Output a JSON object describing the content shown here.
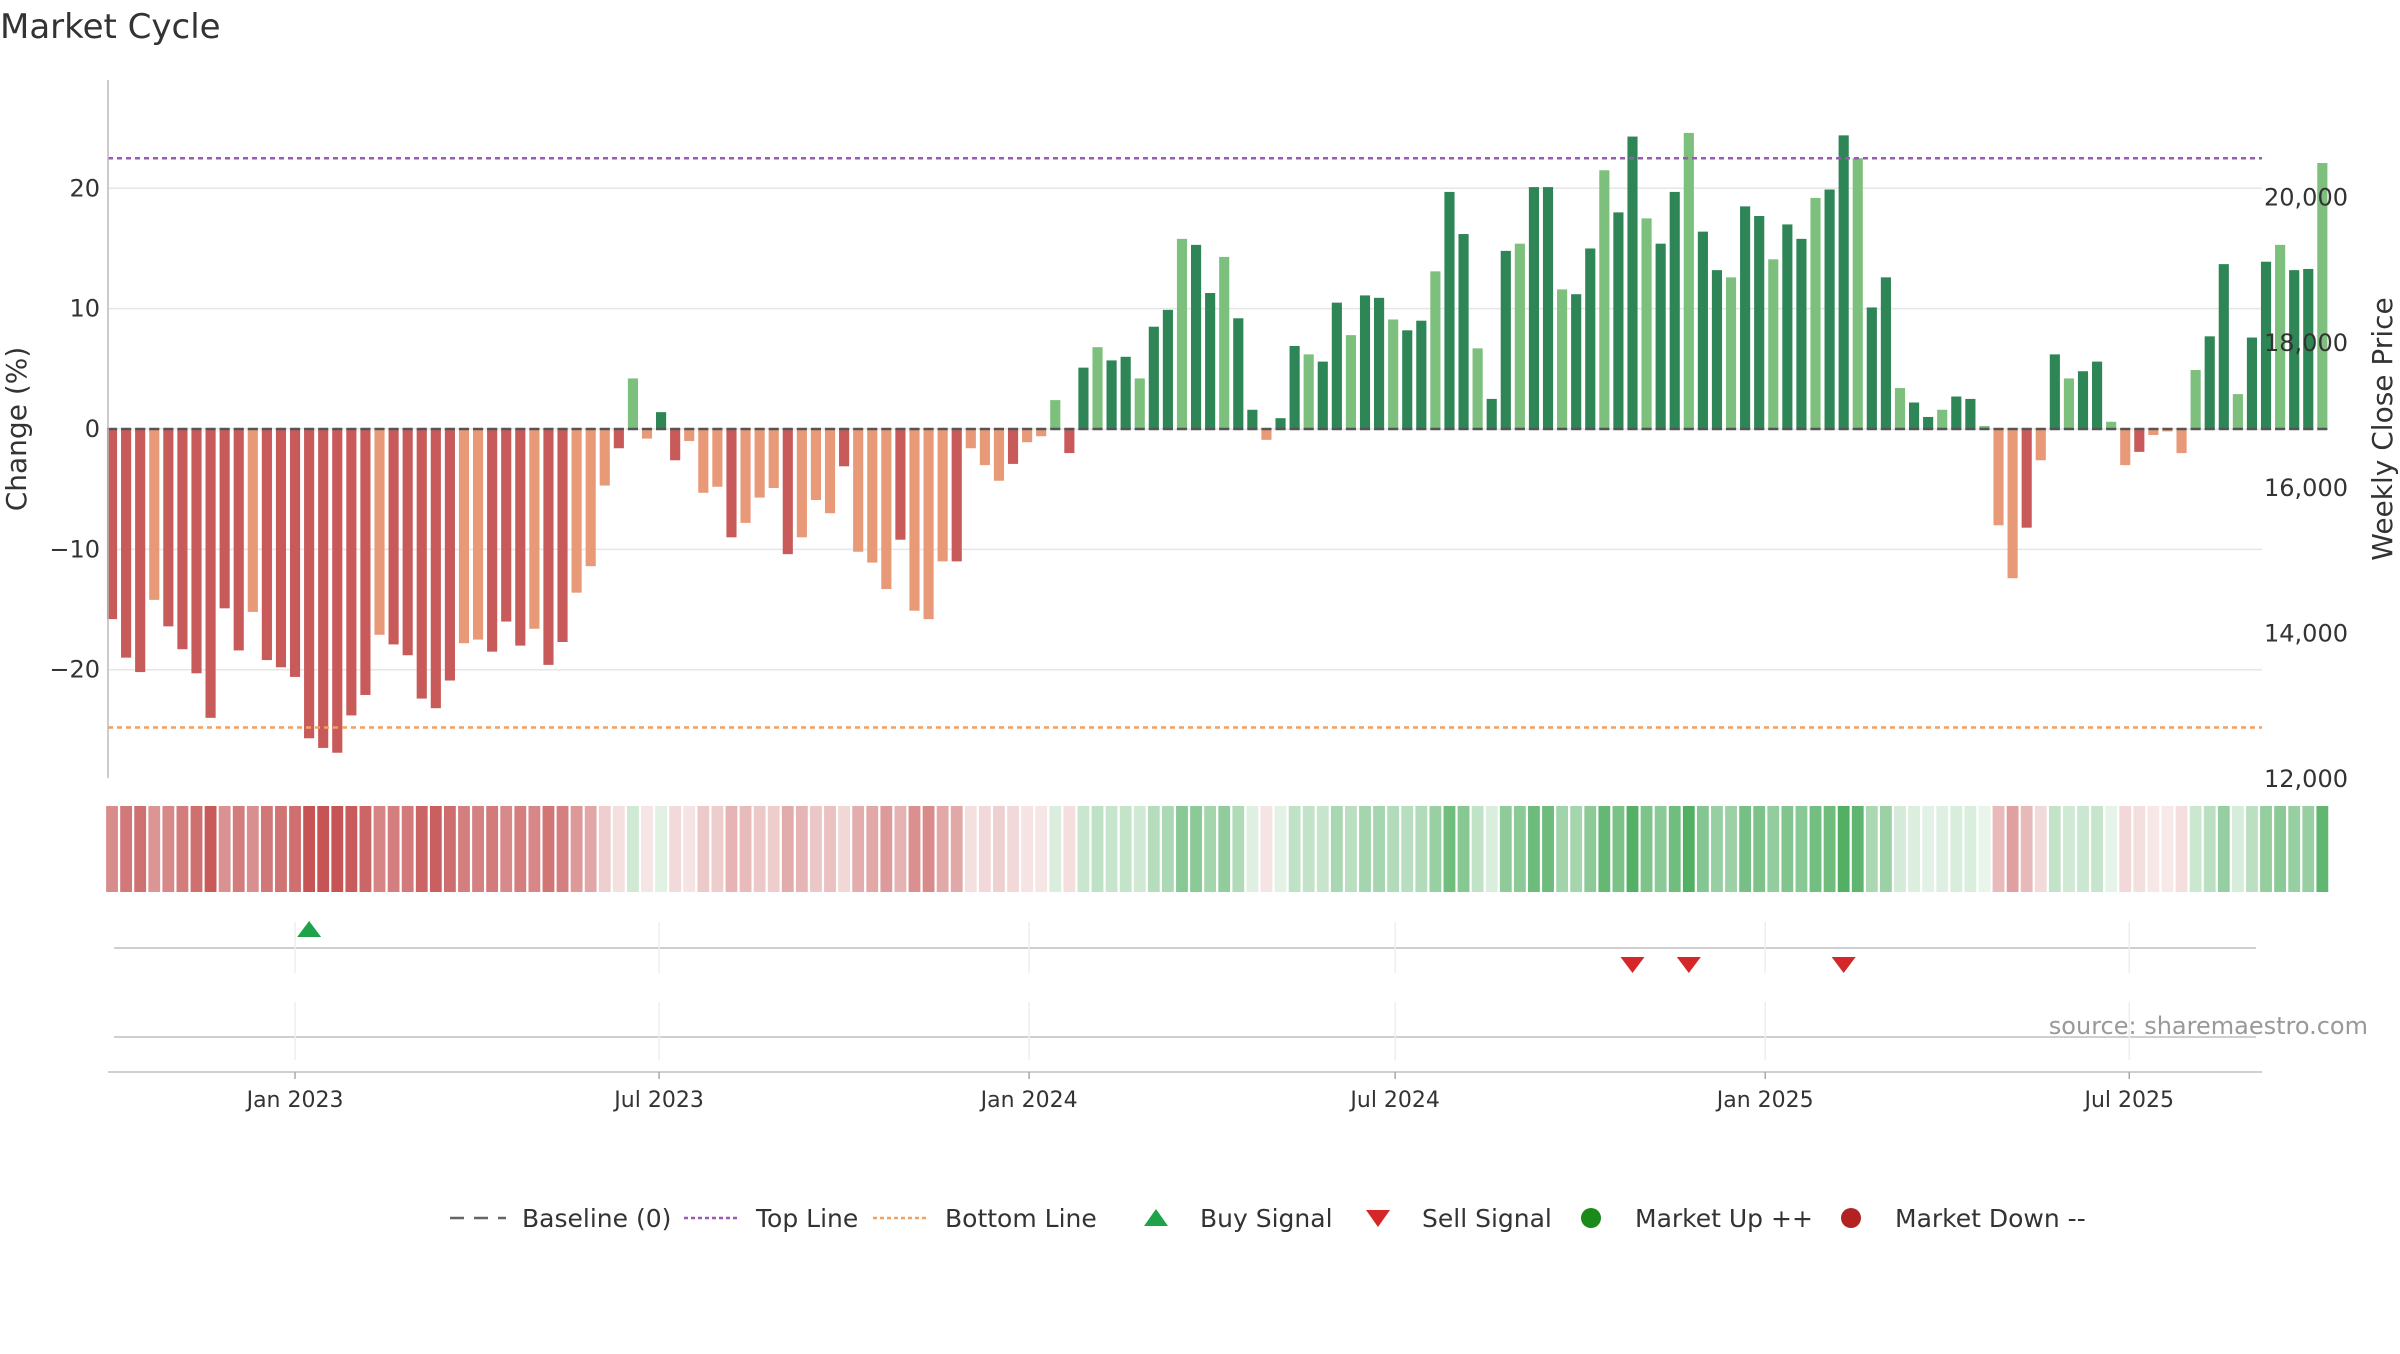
{
  "title": "Market Cycle",
  "source_note": "source: sharemaestro.com",
  "colors": {
    "up_dark": "#2e8555",
    "up_light": "#7dbf7d",
    "down_dark": "#c85a5a",
    "down_light": "#e89a78",
    "top_line": "#9b59b6",
    "bottom_line": "#f0a060",
    "baseline": "#666666",
    "buy": "#1fa34a",
    "sell": "#d62728",
    "market_up": "#1a8a1a",
    "market_down": "#b22222",
    "grid": "#e6e6e6",
    "axis": "#bbbbbb",
    "text": "#333333"
  },
  "chart_data": {
    "type": "bar",
    "title": "Market Cycle",
    "ylabel": "Change (%)",
    "y2label": "Weekly Close Price",
    "ylim": [
      -29,
      29
    ],
    "y_ticks": [
      20,
      10,
      0,
      -10,
      -20
    ],
    "y_tick_labels": [
      "20",
      "10",
      "0",
      "−10",
      "−20"
    ],
    "y2lim": [
      12000,
      21600
    ],
    "y2_ticks": [
      20000,
      18000,
      16000,
      14000,
      12000
    ],
    "y2_tick_labels": [
      "20,000",
      "18,000",
      "16,000",
      "14,000",
      "12,000"
    ],
    "x_start": "2022-09-30",
    "x_end": "2025-09-05",
    "x_ticks": [
      "2023-01-01",
      "2023-07-01",
      "2024-01-01",
      "2024-07-01",
      "2025-01-01",
      "2025-07-01"
    ],
    "x_tick_labels": [
      "Jan 2023",
      "Jul 2023",
      "Jan 2024",
      "Jul 2024",
      "Jan 2025",
      "Jul 2025"
    ],
    "first_week": "2022-10-02",
    "top_line": 22.5,
    "bottom_line": -24.8,
    "baseline": 0,
    "grid": true,
    "legend_position": "bottom-center",
    "legend": [
      {
        "label": "Baseline (0)",
        "kind": "dash-line",
        "color": "#666666"
      },
      {
        "label": "Top Line",
        "kind": "dot-line",
        "color": "#9b59b6"
      },
      {
        "label": "Bottom Line",
        "kind": "dot-line",
        "color": "#f0a060"
      },
      {
        "label": "Buy Signal",
        "kind": "triangle-up",
        "color": "#1fa34a"
      },
      {
        "label": "Sell Signal",
        "kind": "triangle-down",
        "color": "#d62728"
      },
      {
        "label": "Market Up ++",
        "kind": "circle",
        "color": "#1a8a1a"
      },
      {
        "label": "Market Down --",
        "kind": "circle",
        "color": "#b22222"
      }
    ],
    "values": [
      -15.8,
      -19,
      -20.2,
      -14.2,
      -16.4,
      -18.3,
      -20.3,
      -24.0,
      -14.9,
      -18.4,
      -15.2,
      -19.2,
      -19.8,
      -20.6,
      -25.7,
      -26.5,
      -26.9,
      -23.8,
      -22.1,
      -17.1,
      -17.9,
      -18.8,
      -22.4,
      -23.2,
      -20.9,
      -17.8,
      -17.5,
      -18.5,
      -16.0,
      -18.0,
      -16.6,
      -19.6,
      -17.7,
      -13.6,
      -11.4,
      -4.7,
      -1.6,
      4.2,
      -0.8,
      1.4,
      -2.6,
      -1.0,
      -5.3,
      -4.8,
      -9.0,
      -7.8,
      -5.7,
      -4.9,
      -10.4,
      -9.0,
      -5.9,
      -7.0,
      -3.1,
      -10.2,
      -11.1,
      -13.3,
      -9.2,
      -15.1,
      -15.8,
      -11.0,
      -11.0,
      -1.6,
      -3.0,
      -4.3,
      -2.9,
      -1.1,
      -0.6,
      2.4,
      -2.0,
      5.1,
      6.8,
      5.7,
      6.0,
      4.2,
      8.5,
      9.9,
      15.8,
      15.3,
      11.3,
      14.3,
      9.2,
      1.6,
      -0.9,
      0.9,
      6.9,
      6.2,
      5.6,
      10.5,
      7.8,
      11.1,
      10.9,
      9.1,
      8.2,
      9.0,
      13.1,
      19.7,
      16.2,
      6.7,
      2.5,
      14.8,
      15.4,
      20.1,
      20.1,
      11.6,
      11.2,
      15.0,
      21.5,
      18.0,
      24.3,
      17.5,
      15.4,
      19.7,
      24.6,
      16.4,
      13.2,
      12.6,
      18.5,
      17.7,
      14.1,
      17.0,
      15.8,
      19.2,
      19.9,
      24.4,
      22.5,
      10.1,
      12.6,
      3.4,
      2.2,
      1.0,
      1.6,
      2.7,
      2.5,
      0,
      -8.0,
      -12.4,
      -8.2,
      -2.6,
      6.2,
      4.2,
      4.8,
      5.6,
      0.6,
      -3.0,
      -1.9,
      -0.5,
      -0.2,
      -2.0,
      4.9,
      7.7,
      13.7,
      2.9,
      7.6,
      13.9,
      15.3,
      13.2,
      13.3,
      22.1
    ],
    "signals": [
      {
        "type": "buy",
        "week": 14
      },
      {
        "type": "sell",
        "week": 108
      },
      {
        "type": "sell",
        "week": 112
      },
      {
        "type": "sell",
        "week": 123
      }
    ]
  }
}
